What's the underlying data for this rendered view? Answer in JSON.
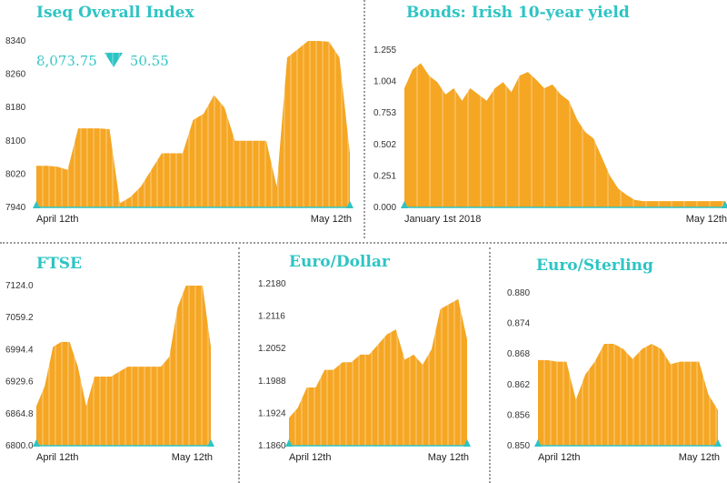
{
  "accent": "#2ec4c4",
  "fill_color": "#f5a623",
  "chart_data": [
    {
      "id": "iseq",
      "type": "area",
      "title": "Iseq Overall Index",
      "readout": {
        "value": "8,073.75",
        "direction": "down",
        "change": "50.55"
      },
      "yticks": [
        "8340",
        "8260",
        "8180",
        "8100",
        "8020",
        "7940"
      ],
      "ylim": [
        7940,
        8340
      ],
      "xlabels": [
        "April 12th",
        "May 12th"
      ],
      "values": [
        8040,
        8040,
        8038,
        8030,
        8130,
        8130,
        8130,
        8128,
        7950,
        7965,
        7990,
        8030,
        8070,
        8070,
        8070,
        8150,
        8165,
        8210,
        8180,
        8100,
        8100,
        8100,
        8100,
        7990,
        8300,
        8320,
        8340,
        8340,
        8338,
        8300,
        8070
      ]
    },
    {
      "id": "bonds",
      "type": "area",
      "title": "Bonds: Irish 10-year yield",
      "yticks": [
        "1.255",
        "1.004",
        "0.753",
        "0.502",
        "0.251",
        "0.000"
      ],
      "ylim": [
        0,
        1.255
      ],
      "xlabels": [
        "January 1st 2018",
        "May 12th"
      ],
      "values": [
        0.95,
        1.1,
        1.15,
        1.05,
        1.0,
        0.9,
        0.95,
        0.85,
        0.95,
        0.9,
        0.85,
        0.95,
        1.0,
        0.92,
        1.05,
        1.08,
        1.02,
        0.95,
        0.98,
        0.9,
        0.85,
        0.7,
        0.6,
        0.55,
        0.4,
        0.25,
        0.15,
        0.1,
        0.06,
        0.05,
        0.05,
        0.05,
        0.05,
        0.05,
        0.05,
        0.05,
        0.05,
        0.05,
        0.05,
        0.05
      ]
    },
    {
      "id": "ftse",
      "type": "area",
      "title": "FTSE",
      "yticks": [
        "7124.0",
        "7059.2",
        "6994.4",
        "6929.6",
        "6864.8",
        "6800.0"
      ],
      "ylim": [
        6800,
        7124
      ],
      "xlabels": [
        "April 12th",
        "May 12th"
      ],
      "values": [
        6880,
        6920,
        7000,
        7010,
        7010,
        6960,
        6880,
        6940,
        6940,
        6940,
        6950,
        6960,
        6960,
        6960,
        6960,
        6960,
        6980,
        7080,
        7124,
        7124,
        7124,
        7000
      ]
    },
    {
      "id": "eurodollar",
      "type": "area",
      "title": "Euro/Dollar",
      "yticks": [
        "1.2180",
        "1.2116",
        "1.2052",
        "1.1988",
        "1.1924",
        "1.1860"
      ],
      "ylim": [
        1.186,
        1.218
      ],
      "xlabels": [
        "April 12th",
        "May 12th"
      ],
      "values": [
        1.1915,
        1.1935,
        1.1975,
        1.1975,
        1.201,
        1.201,
        1.2025,
        1.2025,
        1.204,
        1.204,
        1.206,
        1.208,
        1.209,
        1.203,
        1.204,
        1.202,
        1.205,
        1.213,
        1.214,
        1.215,
        1.207
      ]
    },
    {
      "id": "eurosterling",
      "type": "area",
      "title": "Euro/Sterling",
      "yticks": [
        "0.880",
        "0.874",
        "0.868",
        "0.862",
        "0.856",
        "0.850"
      ],
      "ylim": [
        0.85,
        0.88
      ],
      "xlabels": [
        "April 12th",
        "May 12th"
      ],
      "values": [
        0.8668,
        0.8668,
        0.8665,
        0.8665,
        0.859,
        0.864,
        0.8665,
        0.87,
        0.87,
        0.869,
        0.867,
        0.869,
        0.87,
        0.869,
        0.866,
        0.8665,
        0.8665,
        0.8665,
        0.86,
        0.857
      ]
    }
  ]
}
